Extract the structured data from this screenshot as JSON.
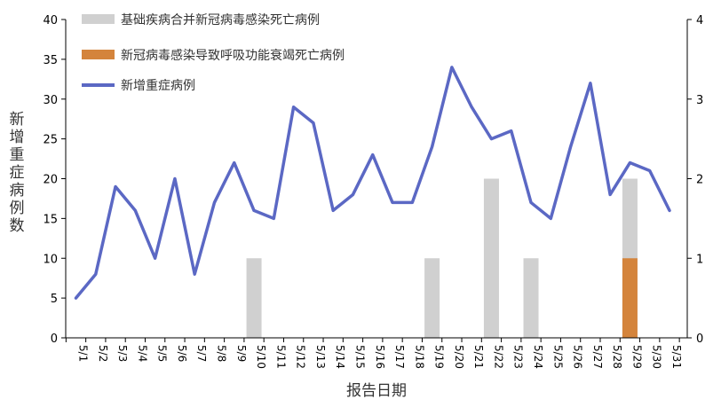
{
  "colors": {
    "line": "#5b68c4",
    "bar_underlying": "#d0d0d0",
    "bar_covid": "#d4843c",
    "axis": "#000000",
    "text": "#333333"
  },
  "chart_data": {
    "type": "line+bar",
    "title": "",
    "xlabel": "报告日期",
    "ylabel": "新增重症病例数",
    "ylim": [
      0,
      40
    ],
    "yticks": [
      0,
      5,
      10,
      15,
      20,
      25,
      30,
      35,
      40
    ],
    "y2lim": [
      0,
      4
    ],
    "y2ticks": [
      0,
      1,
      2,
      3,
      4
    ],
    "legend_position": "top-left",
    "categories": [
      "5/1",
      "5/2",
      "5/3",
      "5/4",
      "5/5",
      "5/6",
      "5/7",
      "5/8",
      "5/9",
      "5/10",
      "5/11",
      "5/12",
      "5/13",
      "5/14",
      "5/15",
      "5/16",
      "5/17",
      "5/18",
      "5/19",
      "5/20",
      "5/21",
      "5/22",
      "5/23",
      "5/24",
      "5/25",
      "5/26",
      "5/27",
      "5/28",
      "5/29",
      "5/30",
      "5/31"
    ],
    "series": [
      {
        "name": "基础疾病合并新冠病毒感染死亡病例",
        "type": "bar",
        "axis": "right",
        "values": [
          0,
          0,
          0,
          0,
          0,
          0,
          0,
          0,
          0,
          1,
          0,
          0,
          0,
          0,
          0,
          0,
          0,
          0,
          1,
          0,
          0,
          2,
          0,
          1,
          0,
          0,
          0,
          0,
          2,
          0,
          0
        ]
      },
      {
        "name": "新冠病毒感染导致呼吸功能衰竭死亡病例",
        "type": "bar",
        "axis": "right",
        "values": [
          0,
          0,
          0,
          0,
          0,
          0,
          0,
          0,
          0,
          0,
          0,
          0,
          0,
          0,
          0,
          0,
          0,
          0,
          0,
          0,
          0,
          0,
          0,
          0,
          0,
          0,
          0,
          0,
          1,
          0,
          0
        ]
      },
      {
        "name": "新增重症病例",
        "type": "line",
        "axis": "left",
        "values": [
          5,
          8,
          19,
          16,
          10,
          20,
          8,
          17,
          22,
          16,
          15,
          29,
          27,
          16,
          18,
          23,
          17,
          17,
          24,
          34,
          29,
          25,
          26,
          17,
          15,
          24,
          32,
          18,
          22,
          21,
          16
        ]
      }
    ]
  }
}
